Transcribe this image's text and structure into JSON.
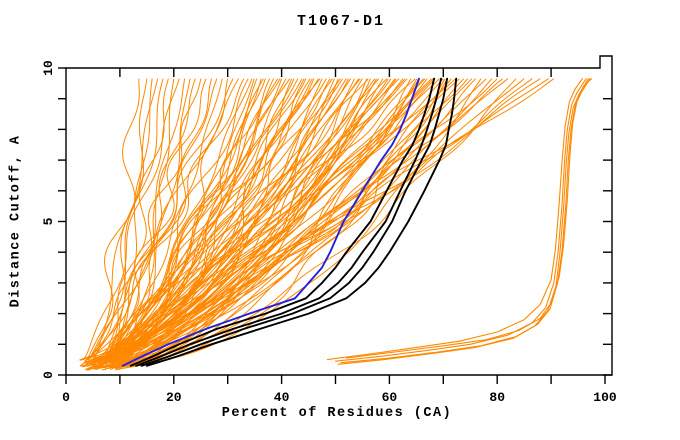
{
  "chart_data": {
    "type": "line",
    "title": "T1067-D1",
    "xlabel": "Percent of Residues (CA)",
    "ylabel": "Distance Cutoff, A",
    "xlim": [
      0,
      100
    ],
    "ylim": [
      0,
      10
    ],
    "x_major_ticks": [
      0,
      20,
      40,
      60,
      80,
      100
    ],
    "x_minor_ticks": [
      10,
      30,
      50,
      70,
      90
    ],
    "y_major_ticks": [
      0,
      5,
      10
    ],
    "y_minor_ticks": [
      1,
      2,
      3,
      4,
      6,
      7,
      8,
      9
    ],
    "grid": false,
    "legend": null,
    "colors": {
      "ensemble": "#ff8800",
      "selected": "#000000",
      "highlight": "#2222dd",
      "frame": "#000000",
      "background": "#ffffff"
    },
    "point_format": "[distance_cutoff_A, percent_residues_CA]",
    "curve_top_cutoff": 9.65,
    "highlight_series": {
      "name": "blue-model-curve",
      "points": [
        [
          0.3,
          10.5
        ],
        [
          0.6,
          14
        ],
        [
          1,
          19
        ],
        [
          1.5,
          26
        ],
        [
          2,
          34
        ],
        [
          2.5,
          42.5
        ],
        [
          3,
          45
        ],
        [
          3.5,
          47.5
        ],
        [
          4,
          49
        ],
        [
          5,
          51.5
        ],
        [
          6,
          55
        ],
        [
          7,
          58.5
        ],
        [
          7.5,
          60.5
        ],
        [
          8,
          62
        ],
        [
          8.5,
          63.2
        ],
        [
          9,
          64.2
        ],
        [
          9.65,
          65.5
        ]
      ]
    },
    "selected_series": [
      {
        "name": "black-model-curve-1",
        "points": [
          [
            0.3,
            12
          ],
          [
            0.6,
            16
          ],
          [
            1,
            21
          ],
          [
            1.5,
            28
          ],
          [
            2,
            37
          ],
          [
            2.5,
            44.5
          ],
          [
            3,
            47.5
          ],
          [
            3.5,
            50
          ],
          [
            4,
            52
          ],
          [
            5,
            56.5
          ],
          [
            6,
            59.5
          ],
          [
            7,
            62.5
          ],
          [
            7.5,
            64.3
          ],
          [
            8,
            65.5
          ],
          [
            8.5,
            66.5
          ],
          [
            9,
            67.4
          ],
          [
            9.65,
            68.3
          ]
        ]
      },
      {
        "name": "black-model-curve-2",
        "points": [
          [
            0.3,
            13
          ],
          [
            0.6,
            17.5
          ],
          [
            1,
            23
          ],
          [
            1.5,
            31
          ],
          [
            2,
            40
          ],
          [
            2.5,
            47
          ],
          [
            3,
            50.5
          ],
          [
            3.5,
            53
          ],
          [
            4,
            55
          ],
          [
            5,
            59.3
          ],
          [
            6,
            62
          ],
          [
            7,
            64.8
          ],
          [
            7.5,
            66
          ],
          [
            8,
            67
          ],
          [
            8.5,
            67.9
          ],
          [
            9,
            68.7
          ],
          [
            9.65,
            69.6
          ]
        ]
      },
      {
        "name": "black-model-curve-3",
        "points": [
          [
            0.3,
            14
          ],
          [
            0.6,
            19
          ],
          [
            1,
            25
          ],
          [
            1.5,
            33
          ],
          [
            2,
            42
          ],
          [
            2.5,
            49
          ],
          [
            3,
            52.5
          ],
          [
            3.5,
            55
          ],
          [
            4,
            57
          ],
          [
            5,
            60.5
          ],
          [
            6,
            63
          ],
          [
            7,
            66
          ],
          [
            7.5,
            67.5
          ],
          [
            8,
            68.4
          ],
          [
            8.5,
            69.2
          ],
          [
            9,
            70
          ],
          [
            9.65,
            70.7
          ]
        ]
      },
      {
        "name": "black-model-curve-4",
        "points": [
          [
            0.3,
            15
          ],
          [
            0.6,
            20.5
          ],
          [
            1,
            27
          ],
          [
            1.5,
            36
          ],
          [
            2,
            45
          ],
          [
            2.5,
            52
          ],
          [
            3,
            55.5
          ],
          [
            3.5,
            58
          ],
          [
            4,
            60
          ],
          [
            5,
            63.5
          ],
          [
            6,
            66.5
          ],
          [
            7,
            69.3
          ],
          [
            7.5,
            70.5
          ],
          [
            8,
            71
          ],
          [
            8.5,
            71.6
          ],
          [
            9,
            72
          ],
          [
            9.65,
            72.4
          ]
        ]
      }
    ],
    "outlier_series": [
      {
        "name": "outlier-curve-1",
        "points": [
          [
            0.45,
            50
          ],
          [
            0.6,
            58
          ],
          [
            0.8,
            67
          ],
          [
            1.0,
            75
          ],
          [
            1.3,
            82
          ],
          [
            1.7,
            86.5
          ],
          [
            2.2,
            89
          ],
          [
            3.0,
            90.5
          ],
          [
            4.0,
            91.3
          ],
          [
            5.5,
            92
          ],
          [
            7.0,
            92.5
          ],
          [
            8.0,
            93
          ],
          [
            8.8,
            93.8
          ],
          [
            9.2,
            94.8
          ],
          [
            9.65,
            96.5
          ]
        ]
      },
      {
        "name": "outlier-curve-2",
        "points": [
          [
            0.5,
            48.5
          ],
          [
            0.7,
            57
          ],
          [
            0.9,
            65
          ],
          [
            1.1,
            73
          ],
          [
            1.4,
            80
          ],
          [
            1.8,
            85
          ],
          [
            2.3,
            88
          ],
          [
            3.1,
            90
          ],
          [
            4.1,
            90.8
          ],
          [
            5.6,
            91.5
          ],
          [
            7.1,
            92.1
          ],
          [
            8.1,
            92.6
          ],
          [
            8.9,
            93.4
          ],
          [
            9.3,
            94.4
          ],
          [
            9.65,
            95.8
          ]
        ]
      },
      {
        "name": "outlier-curve-3",
        "points": [
          [
            0.4,
            51
          ],
          [
            0.55,
            60
          ],
          [
            0.75,
            69
          ],
          [
            0.95,
            77
          ],
          [
            1.25,
            83.5
          ],
          [
            1.65,
            87.5
          ],
          [
            2.15,
            89.8
          ],
          [
            3.0,
            91.2
          ],
          [
            4.0,
            92
          ],
          [
            5.5,
            92.7
          ],
          [
            7.0,
            93.2
          ],
          [
            8.0,
            93.7
          ],
          [
            8.8,
            94.5
          ],
          [
            9.2,
            95.6
          ],
          [
            9.65,
            97.2
          ]
        ]
      },
      {
        "name": "outlier-curve-4",
        "points": [
          [
            0.35,
            50.5
          ],
          [
            0.5,
            59
          ],
          [
            0.7,
            68
          ],
          [
            0.9,
            76
          ],
          [
            1.2,
            83
          ],
          [
            1.6,
            87
          ],
          [
            2.1,
            89.4
          ],
          [
            2.9,
            90.9
          ],
          [
            3.9,
            91.6
          ],
          [
            5.4,
            92.3
          ],
          [
            6.9,
            92.8
          ],
          [
            7.9,
            93.3
          ],
          [
            8.7,
            94.1
          ],
          [
            9.15,
            95.2
          ],
          [
            9.65,
            96.9
          ]
        ]
      },
      {
        "name": "outlier-curve-5",
        "points": [
          [
            0.55,
            52
          ],
          [
            0.75,
            61
          ],
          [
            0.95,
            70
          ],
          [
            1.15,
            78
          ],
          [
            1.45,
            84
          ],
          [
            1.85,
            88
          ],
          [
            2.35,
            90
          ],
          [
            3.2,
            91.5
          ],
          [
            4.2,
            92.3
          ],
          [
            5.7,
            93
          ],
          [
            7.2,
            93.5
          ],
          [
            8.2,
            94
          ],
          [
            9.0,
            94.9
          ],
          [
            9.4,
            96
          ],
          [
            9.65,
            97.5
          ]
        ]
      }
    ],
    "ensemble": {
      "description": "dense bundle of orange per-model cumulative curves fanning from ~3-12% at cutoff 0.2A up to tops of 13-90% at cutoff 9.65A",
      "seed": 7,
      "x_start_range": [
        2.5,
        10.5
      ],
      "shape_exponent_range": [
        0.5,
        0.95
      ],
      "x_top_values": [
        13.5,
        15,
        16,
        17,
        18,
        19,
        20,
        21,
        22,
        23,
        24,
        25,
        26,
        27,
        28,
        29,
        30,
        31,
        32,
        33,
        33.8,
        34.5,
        35.4,
        36.2,
        37,
        37.8,
        38.5,
        39.3,
        40,
        40.8,
        41.5,
        42.3,
        43,
        43.8,
        44.5,
        45.3,
        46,
        46.8,
        47.5,
        48.3,
        49,
        49.8,
        50.5,
        51.3,
        52,
        52.8,
        53.5,
        54.3,
        55,
        55.8,
        56.5,
        57.3,
        58,
        58.8,
        59.5,
        60.3,
        61,
        61.8,
        62.5,
        63.3,
        64,
        64.8,
        65.5,
        66.3,
        67,
        67.8,
        68.5,
        69.3,
        70,
        70.8,
        71.5,
        72.3,
        73,
        73.8,
        74.5,
        75.3,
        76,
        77,
        78,
        79,
        80,
        81,
        82,
        83.5,
        85,
        86.5,
        88,
        89.5,
        90.5,
        36.6,
        41.9,
        47.1,
        52.4,
        57.6,
        62.9,
        68.1,
        44.2,
        49.4,
        54.6,
        59.8,
        65.1,
        70.3,
        34.9,
        39.7,
        45.7,
        50.9,
        56.1,
        61.3,
        66.6
      ]
    }
  }
}
